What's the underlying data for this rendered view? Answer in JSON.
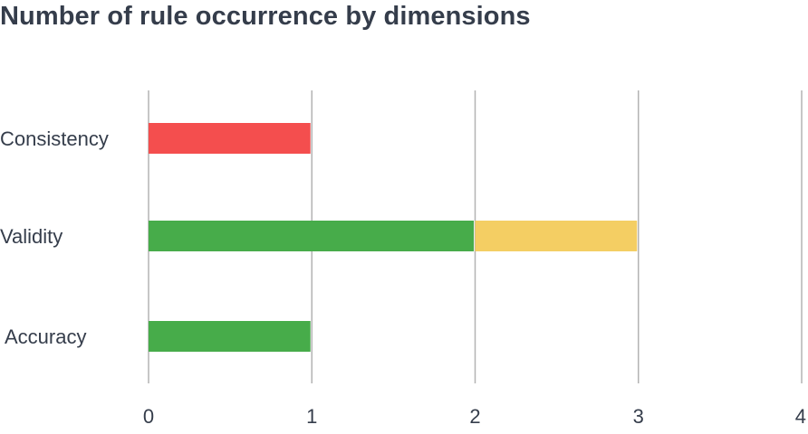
{
  "chart_data": {
    "type": "bar",
    "orientation": "horizontal",
    "stacked": true,
    "title": "Number of rule occurrence by dimensions",
    "xlabel": "",
    "ylabel": "",
    "xlim": [
      0,
      4
    ],
    "x_ticks": [
      "0",
      "1",
      "2",
      "3",
      "4"
    ],
    "grid": "vertical",
    "legend": "none",
    "categories": [
      "Consistency",
      "Validity",
      "Accuracy"
    ],
    "series": [
      {
        "color": "#f44e4e",
        "values": [
          1,
          0,
          0
        ]
      },
      {
        "color": "#47ac4a",
        "values": [
          0,
          2,
          1
        ]
      },
      {
        "color": "#f4ce63",
        "values": [
          0,
          1,
          0
        ]
      }
    ]
  }
}
